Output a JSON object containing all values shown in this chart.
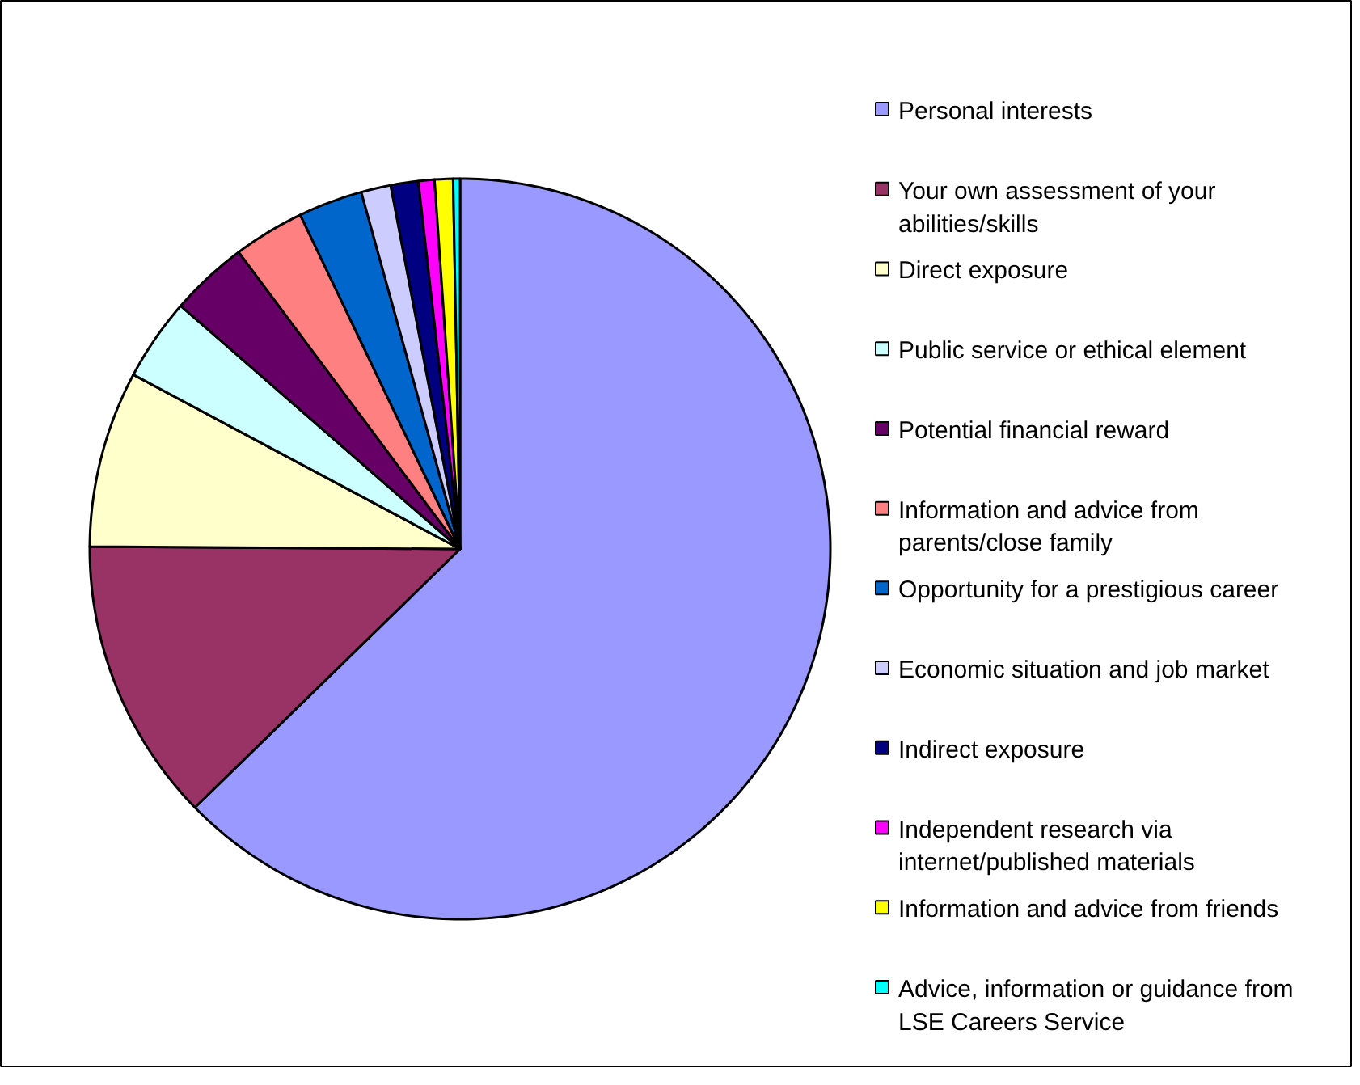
{
  "chart_data": {
    "type": "pie",
    "legend": "right",
    "categories": [
      "Personal interests",
      "Your own assessment of your abilities/skills",
      "Direct exposure",
      "Public service or ethical element",
      "Potential financial reward",
      "Information and advice from parents/close family",
      "Opportunity for a prestigious career",
      "Economic situation and job market",
      "Indirect exposure",
      "Independent research via internet/published materials",
      "Information and advice from friends",
      "Advice, information or guidance from LSE Careers Service"
    ],
    "values": [
      62.7,
      12.4,
      7.7,
      3.6,
      3.4,
      3.1,
      2.8,
      1.3,
      1.2,
      0.7,
      0.8,
      0.3
    ],
    "colors": [
      "#9999ff",
      "#993366",
      "#ffffcc",
      "#ccffff",
      "#660066",
      "#ff8080",
      "#0066cc",
      "#ccccff",
      "#000080",
      "#ff00ff",
      "#ffff00",
      "#00ffff"
    ]
  }
}
